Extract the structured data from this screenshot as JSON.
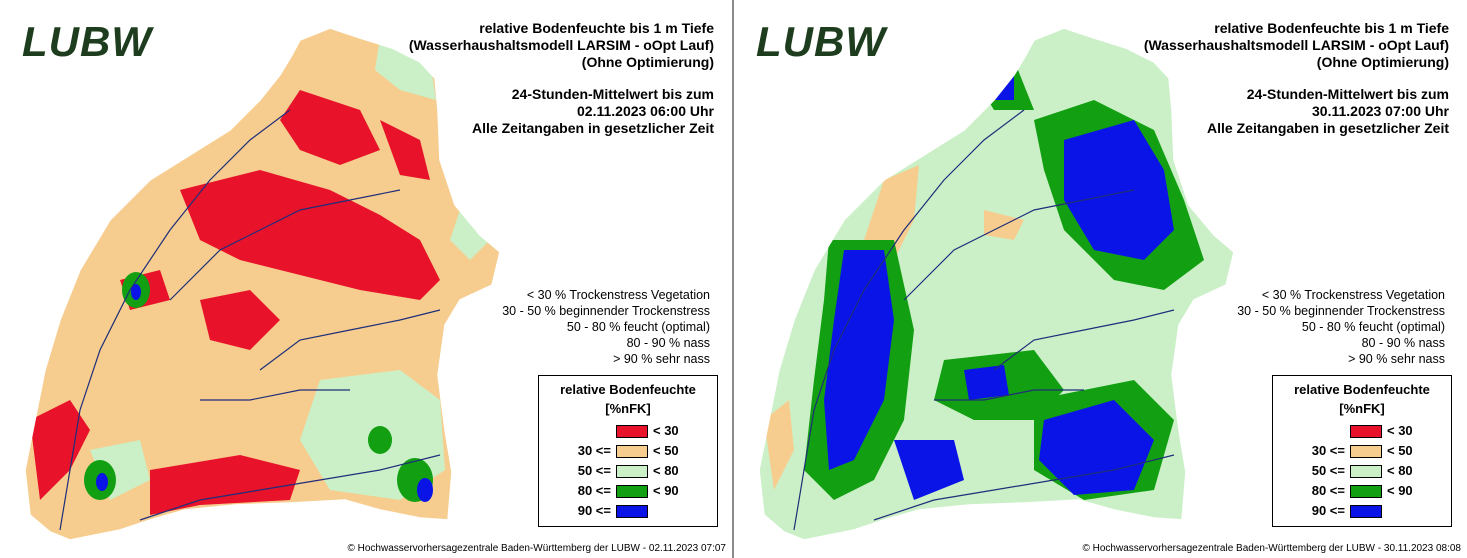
{
  "panels": [
    {
      "logo": "LUBW",
      "title_lines": [
        "relative Bodenfeuchte bis 1 m Tiefe",
        "(Wasserhaushaltsmodell LARSIM - oOpt Lauf)",
        "(Ohne Optimierung)"
      ],
      "date_lines": [
        "24-Stunden-Mittelwert bis zum",
        "02.11.2023 06:00 Uhr",
        "Alle Zeitangaben in gesetzlicher Zeit"
      ],
      "copyright": "© Hochwasservorhersagezentrale Baden-Württemberg der LUBW - 02.11.2023 07:07",
      "dominant_class": "dry"
    },
    {
      "logo": "LUBW",
      "title_lines": [
        "relative Bodenfeuchte bis 1 m Tiefe",
        "(Wasserhaushaltsmodell LARSIM - oOpt Lauf)",
        "(Ohne Optimierung)"
      ],
      "date_lines": [
        "24-Stunden-Mittelwert bis zum",
        "30.11.2023 07:00 Uhr",
        "Alle Zeitangaben in gesetzlicher Zeit"
      ],
      "copyright": "© Hochwasservorhersagezentrale Baden-Württemberg der LUBW - 30.11.2023 08:08",
      "dominant_class": "wet"
    }
  ],
  "legend_descriptions": [
    "< 30 % Trockenstress Vegetation",
    "30 - 50 % beginnender Trockenstress",
    "50 - 80 % feucht (optimal)",
    "80 - 90 % nass",
    "> 90 % sehr nass"
  ],
  "legend_title": [
    "relative Bodenfeuchte",
    "[%nFK]"
  ],
  "legend_classes": [
    {
      "left": "",
      "right": "< 30",
      "color": "#e8122a"
    },
    {
      "left": "30 <=",
      "right": "< 50",
      "color": "#f6cd8e"
    },
    {
      "left": "50 <=",
      "right": "< 80",
      "color": "#cbf0c8"
    },
    {
      "left": "80 <=",
      "right": "< 90",
      "color": "#129f12"
    },
    {
      "left": "90 <=",
      "right": "",
      "color": "#0a14e6"
    }
  ],
  "colors": {
    "river": "#1f2e7a",
    "border": "#ffffff"
  }
}
